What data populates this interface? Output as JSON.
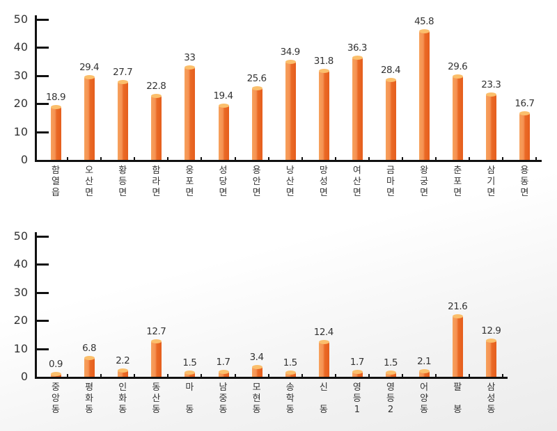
{
  "chart_data": [
    {
      "type": "bar",
      "title": "",
      "xlabel": "",
      "ylabel": "",
      "ylim": [
        0,
        50
      ],
      "yticks": [
        0,
        10,
        20,
        30,
        40,
        50
      ],
      "grid": false,
      "legend": null,
      "categories": [
        "함열읍",
        "오산면",
        "황등면",
        "함라면",
        "웅포면",
        "성당면",
        "용안면",
        "낭산면",
        "망성면",
        "여산면",
        "금마면",
        "왕궁면",
        "춘포면",
        "삼기면",
        "용동면"
      ],
      "values": [
        18.9,
        29.4,
        27.7,
        22.8,
        33,
        19.4,
        25.6,
        34.9,
        31.8,
        36.3,
        28.4,
        45.8,
        29.6,
        23.3,
        16.7
      ],
      "value_labels": [
        "18.9",
        "29.4",
        "27.7",
        "22.8",
        "33",
        "19.4",
        "25.6",
        "34.9",
        "31.8",
        "36.3",
        "28.4",
        "45.8",
        "29.6",
        "23.3",
        "16.7"
      ],
      "bar_color": "#f07a35"
    },
    {
      "type": "bar",
      "title": "",
      "xlabel": "",
      "ylabel": "",
      "ylim": [
        0,
        50
      ],
      "yticks": [
        0,
        10,
        20,
        30,
        40,
        50
      ],
      "grid": false,
      "legend": null,
      "categories": [
        "중앙동",
        "평화동",
        "인화동",
        "동산동",
        "마 동",
        "남중동",
        "모현동",
        "송학동",
        "신 동",
        "영등1",
        "영등2",
        "어양동",
        "팔 봉",
        "삼성동"
      ],
      "values": [
        0.9,
        6.8,
        2.2,
        12.7,
        1.5,
        1.7,
        3.4,
        1.5,
        12.4,
        1.7,
        1.5,
        2.1,
        21.6,
        12.9
      ],
      "value_labels": [
        "0.9",
        "6.8",
        "2.2",
        "12.7",
        "1.5",
        "1.7",
        "3.4",
        "1.5",
        "12.4",
        "1.7",
        "1.5",
        "2.1",
        "21.6",
        "12.9"
      ],
      "bar_color": "#f07a35"
    }
  ]
}
